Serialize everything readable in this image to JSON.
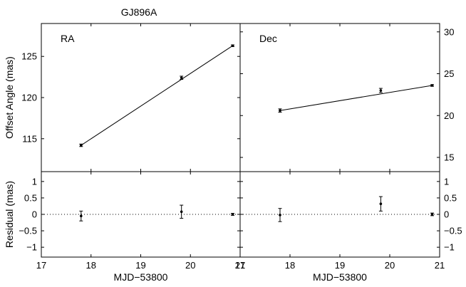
{
  "figure_title": "GJ896A",
  "chart_data": [
    {
      "type": "line",
      "panel": "RA",
      "panel_label": "RA",
      "ylabel": "Offset Angle (mas)",
      "xlim": [
        17,
        21
      ],
      "ylim": [
        111,
        129
      ],
      "yticks": [
        115,
        120,
        125
      ],
      "ytick_labels": [
        "115",
        "120",
        "125"
      ],
      "points": {
        "x": [
          17.8,
          19.82,
          20.85
        ],
        "y": [
          114.2,
          122.4,
          126.3
        ],
        "err": [
          0.15,
          0.2,
          0.1
        ]
      },
      "fit_line": {
        "x": [
          17.8,
          20.85
        ],
        "y": [
          114.2,
          126.3
        ]
      }
    },
    {
      "type": "line",
      "panel": "Dec",
      "panel_label": "Dec",
      "ylabel": "",
      "xlim": [
        17,
        21
      ],
      "ylim": [
        13.3,
        31
      ],
      "yticks": [
        15,
        20,
        25,
        30
      ],
      "ytick_labels": [
        "15",
        "20",
        "25",
        "30"
      ],
      "points": {
        "x": [
          17.8,
          19.82,
          20.85
        ],
        "y": [
          20.6,
          23.0,
          23.6
        ],
        "err": [
          0.2,
          0.25,
          0.1
        ]
      },
      "fit_line": {
        "x": [
          17.8,
          20.85
        ],
        "y": [
          20.6,
          23.6
        ]
      }
    },
    {
      "type": "scatter",
      "panel": "RA residual",
      "xlabel": "MJD−53800",
      "ylabel": "Residual (mas)",
      "xlim": [
        17,
        21
      ],
      "ylim": [
        -1.3,
        1.3
      ],
      "xticks": [
        17,
        18,
        19,
        20,
        21
      ],
      "xtick_labels": [
        "17",
        "18",
        "19",
        "20",
        "21"
      ],
      "yticks": [
        -1,
        -0.5,
        0,
        0.5,
        1
      ],
      "ytick_labels": [
        "−1",
        "−0.5",
        "0",
        "0.5",
        "1"
      ],
      "points": {
        "x": [
          17.8,
          19.82,
          20.85
        ],
        "y": [
          -0.05,
          0.08,
          0.0
        ],
        "err": [
          0.15,
          0.2,
          0.03
        ]
      },
      "zero_line": true
    },
    {
      "type": "scatter",
      "panel": "Dec residual",
      "xlabel": "MJD−53800",
      "ylabel": "",
      "xlim": [
        17,
        21
      ],
      "ylim": [
        -1.3,
        1.3
      ],
      "xticks": [
        17,
        18,
        19,
        20,
        21
      ],
      "xtick_labels": [
        "17",
        "18",
        "19",
        "20",
        "21"
      ],
      "yticks": [
        -1,
        -0.5,
        0,
        0.5,
        1
      ],
      "ytick_labels": [
        "−1",
        "−0.5",
        "0",
        "0.5",
        "1"
      ],
      "points": {
        "x": [
          17.8,
          19.82,
          20.85
        ],
        "y": [
          -0.02,
          0.32,
          0.0
        ],
        "err": [
          0.2,
          0.22,
          0.04
        ]
      },
      "zero_line": true
    }
  ]
}
